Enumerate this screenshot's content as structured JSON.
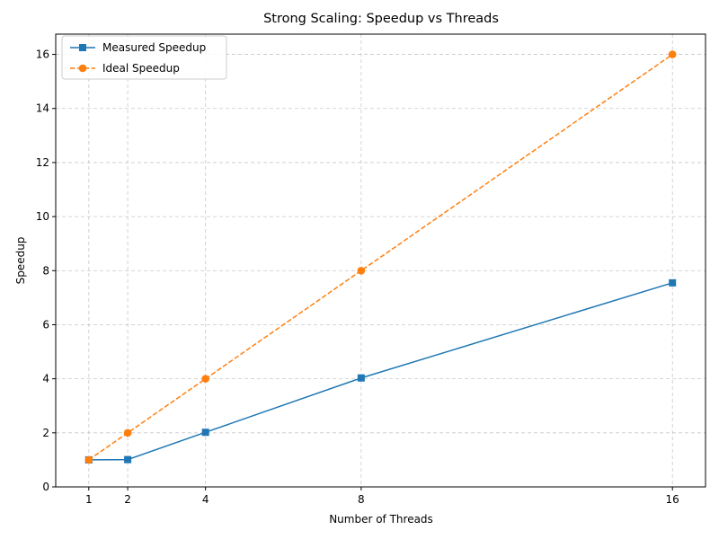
{
  "chart_data": {
    "type": "line",
    "title": "Strong Scaling: Speedup vs Threads",
    "xlabel": "Number of Threads",
    "ylabel": "Speedup",
    "x": [
      1,
      2,
      4,
      8,
      16
    ],
    "xticks": [
      1,
      2,
      4,
      8,
      16
    ],
    "yticks": [
      0,
      2,
      4,
      6,
      8,
      10,
      12,
      14,
      16
    ],
    "xlim": [
      0.15,
      16.85
    ],
    "ylim": [
      0,
      16.75
    ],
    "grid": true,
    "legend_position": "top-left",
    "series": [
      {
        "name": "Measured Speedup",
        "values": [
          1.0,
          1.01,
          2.02,
          4.03,
          7.55
        ],
        "color": "#1f77b4",
        "marker": "square",
        "line_style": "solid"
      },
      {
        "name": "Ideal Speedup",
        "values": [
          1,
          2,
          4,
          8,
          16
        ],
        "color": "#ff7f0e",
        "marker": "circle",
        "line_style": "dashed"
      }
    ]
  }
}
